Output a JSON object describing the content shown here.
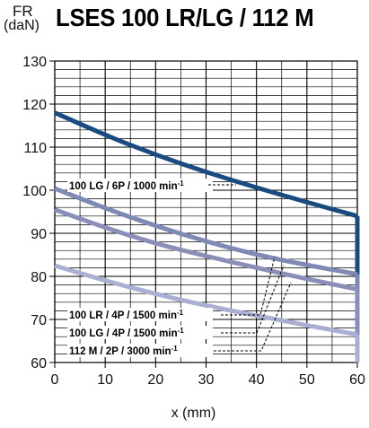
{
  "chart_data": {
    "type": "line",
    "title": "LSES 100 LR/LG / 112 M",
    "ylabel_symbol": "FR",
    "ylabel_unit": "(daN)",
    "xlabel": "x (mm)",
    "xlim": [
      0,
      60
    ],
    "ylim": [
      60,
      130
    ],
    "xticks": [
      0,
      10,
      20,
      30,
      40,
      50,
      60
    ],
    "yticks": [
      60,
      70,
      80,
      90,
      100,
      110,
      120,
      130
    ],
    "grid": true,
    "series": [
      {
        "name": "100 LG / 6P / 1000 min-1",
        "label_text": "100 LG / 6P / 1000 min",
        "label_sup": "-1",
        "color": "#1a4a80",
        "x": [
          0,
          10,
          20,
          30,
          40,
          50,
          60
        ],
        "y": [
          118,
          112.8,
          108.2,
          104.2,
          100.6,
          97.2,
          94
        ]
      },
      {
        "name": "100 LR / 4P / 1500 min-1",
        "label_text": "100 LR / 4P / 1500 min",
        "label_sup": "-1",
        "color": "#7e8ab4",
        "x": [
          0,
          10,
          20,
          30,
          40,
          50,
          60
        ],
        "y": [
          100.4,
          95.8,
          91.7,
          88.1,
          85,
          82.6,
          80.5
        ]
      },
      {
        "name": "100 LG / 4P / 1500 min-1",
        "label_text": "100 LG / 4P / 1500 min",
        "label_sup": "-1",
        "color": "#8a8fb8",
        "x": [
          0,
          10,
          20,
          30,
          40,
          50,
          60
        ],
        "y": [
          95.5,
          91.3,
          87.6,
          84.7,
          82,
          79.4,
          77
        ]
      },
      {
        "name": "112 M / 2P / 3000 min-1",
        "label_text": "112 M / 2P / 3000 min",
        "label_sup": "-1",
        "color": "#a9b0d4",
        "x": [
          0,
          10,
          20,
          30,
          40,
          50,
          60
        ],
        "y": [
          82.5,
          79,
          75.9,
          73.2,
          70.9,
          68.6,
          66.5
        ]
      }
    ]
  }
}
